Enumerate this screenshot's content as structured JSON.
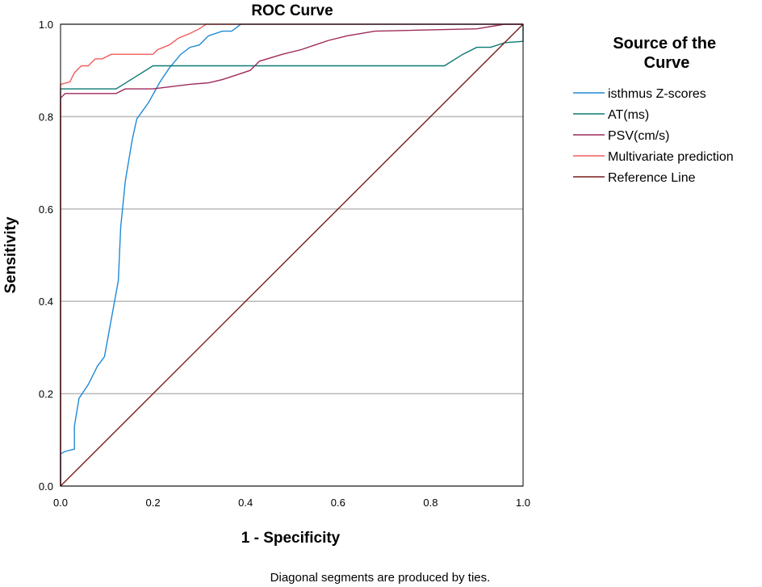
{
  "chart_data": {
    "type": "line",
    "title": "ROC Curve",
    "xlabel": "1 - Specificity",
    "ylabel": "Sensitivity",
    "xlim": [
      0,
      1
    ],
    "ylim": [
      0,
      1
    ],
    "x_ticks": [
      "0.0",
      "0.2",
      "0.4",
      "0.6",
      "0.8",
      "1.0"
    ],
    "y_ticks": [
      "0.0",
      "0.2",
      "0.4",
      "0.6",
      "0.8",
      "1.0"
    ],
    "grid": "horizontal",
    "legend_title": "Source of the Curve",
    "legend_position": "right",
    "footnote": "Diagonal segments are produced by ties.",
    "series": [
      {
        "name": "isthmus Z-scores",
        "color": "#1f8ad6",
        "points": [
          [
            0,
            0
          ],
          [
            0,
            0.07
          ],
          [
            0.01,
            0.075
          ],
          [
            0.03,
            0.08
          ],
          [
            0.03,
            0.13
          ],
          [
            0.04,
            0.19
          ],
          [
            0.06,
            0.22
          ],
          [
            0.08,
            0.26
          ],
          [
            0.095,
            0.28
          ],
          [
            0.125,
            0.445
          ],
          [
            0.13,
            0.56
          ],
          [
            0.14,
            0.66
          ],
          [
            0.155,
            0.75
          ],
          [
            0.165,
            0.795
          ],
          [
            0.19,
            0.83
          ],
          [
            0.215,
            0.875
          ],
          [
            0.235,
            0.905
          ],
          [
            0.26,
            0.935
          ],
          [
            0.28,
            0.95
          ],
          [
            0.3,
            0.955
          ],
          [
            0.32,
            0.975
          ],
          [
            0.35,
            0.985
          ],
          [
            0.37,
            0.985
          ],
          [
            0.39,
            1.0
          ],
          [
            1,
            1
          ]
        ]
      },
      {
        "name": "AT(ms)",
        "color": "#0b7a74",
        "points": [
          [
            0,
            0
          ],
          [
            0,
            0.86
          ],
          [
            0.12,
            0.86
          ],
          [
            0.16,
            0.885
          ],
          [
            0.2,
            0.91
          ],
          [
            0.5,
            0.91
          ],
          [
            0.83,
            0.91
          ],
          [
            0.87,
            0.935
          ],
          [
            0.9,
            0.95
          ],
          [
            0.93,
            0.95
          ],
          [
            0.96,
            0.96
          ],
          [
            1,
            0.963
          ],
          [
            1,
            1
          ]
        ]
      },
      {
        "name": "PSV(cm/s)",
        "color": "#9e2a5a",
        "points": [
          [
            0,
            0
          ],
          [
            0,
            0.84
          ],
          [
            0.01,
            0.85
          ],
          [
            0.12,
            0.85
          ],
          [
            0.14,
            0.86
          ],
          [
            0.2,
            0.86
          ],
          [
            0.28,
            0.87
          ],
          [
            0.32,
            0.873
          ],
          [
            0.35,
            0.88
          ],
          [
            0.38,
            0.89
          ],
          [
            0.41,
            0.9
          ],
          [
            0.43,
            0.92
          ],
          [
            0.48,
            0.935
          ],
          [
            0.52,
            0.945
          ],
          [
            0.55,
            0.955
          ],
          [
            0.58,
            0.965
          ],
          [
            0.62,
            0.975
          ],
          [
            0.68,
            0.985
          ],
          [
            0.9,
            0.99
          ],
          [
            0.96,
            1.0
          ],
          [
            1,
            1
          ]
        ]
      },
      {
        "name": "Multivariate prediction",
        "color": "#f25c5c",
        "points": [
          [
            0,
            0
          ],
          [
            0,
            0.87
          ],
          [
            0.02,
            0.875
          ],
          [
            0.03,
            0.895
          ],
          [
            0.045,
            0.91
          ],
          [
            0.06,
            0.91
          ],
          [
            0.075,
            0.925
          ],
          [
            0.09,
            0.925
          ],
          [
            0.11,
            0.935
          ],
          [
            0.2,
            0.935
          ],
          [
            0.21,
            0.945
          ],
          [
            0.235,
            0.955
          ],
          [
            0.255,
            0.97
          ],
          [
            0.28,
            0.98
          ],
          [
            0.3,
            0.99
          ],
          [
            0.315,
            1.0
          ],
          [
            1,
            1
          ]
        ]
      },
      {
        "name": "Reference Line",
        "color": "#7a1c1c",
        "points": [
          [
            0,
            0
          ],
          [
            1,
            1
          ]
        ]
      }
    ]
  }
}
